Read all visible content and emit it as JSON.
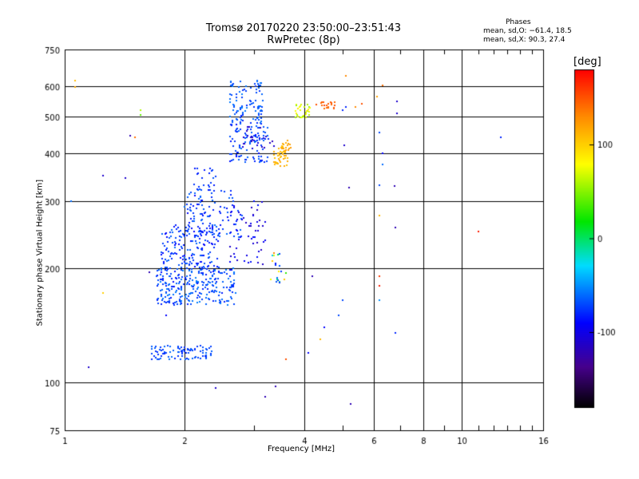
{
  "header": {
    "title_line1": "Tromsø 20170220 23:50:00–23:51:43",
    "title_line2": "RwPretec (8p)"
  },
  "phases": {
    "heading": "Phases",
    "line_o": "mean, sd,O: −61.4, 18.5",
    "line_x": "mean, sd,X:  90.3, 27.4"
  },
  "chart_data": {
    "type": "scatter",
    "xlabel": "Frequency [MHz]",
    "ylabel": "Stationary phase Virtual Height [km]",
    "xscale": "log",
    "yscale": "log",
    "xlim": [
      1,
      16
    ],
    "ylim": [
      75,
      750
    ],
    "x_ticks": [
      1,
      2,
      4,
      6,
      8,
      10,
      16
    ],
    "x_minor": [
      3,
      5,
      7,
      9,
      11,
      12,
      13,
      14,
      15
    ],
    "y_ticks": [
      75,
      100,
      200,
      300,
      400,
      500,
      600,
      750
    ],
    "grid": true,
    "colorbar": {
      "label": "[deg]",
      "range": [
        -180,
        180
      ],
      "ticks": [
        -100,
        0,
        100
      ],
      "colormap": "rainbow"
    },
    "points": [
      [
        1.06,
        620,
        108
      ],
      [
        1.06,
        598,
        115
      ],
      [
        1.04,
        300,
        -60
      ],
      [
        1.25,
        350,
        -110
      ],
      [
        1.42,
        345,
        -110
      ],
      [
        1.46,
        445,
        -120
      ],
      [
        1.5,
        440,
        140
      ],
      [
        1.55,
        520,
        60
      ],
      [
        1.55,
        505,
        40
      ],
      [
        1.15,
        110,
        -110
      ],
      [
        1.25,
        172,
        100
      ],
      [
        1.63,
        195,
        -120
      ],
      [
        1.8,
        172,
        -60
      ],
      [
        1.8,
        150,
        -90
      ],
      [
        2.4,
        97,
        -110
      ],
      [
        3.2,
        92,
        -120
      ],
      [
        3.4,
        98,
        -120
      ],
      [
        5.25,
        88,
        -120
      ],
      [
        5.2,
        325,
        -120
      ],
      [
        6.2,
        330,
        -70
      ],
      [
        6.2,
        275,
        110
      ],
      [
        6.75,
        328,
        -120
      ],
      [
        6.8,
        255,
        -120
      ],
      [
        6.8,
        135,
        -80
      ],
      [
        6.2,
        190,
        160
      ],
      [
        6.2,
        180,
        170
      ],
      [
        6.2,
        165,
        -50
      ],
      [
        6.2,
        455,
        -70
      ],
      [
        6.3,
        605,
        140
      ],
      [
        6.85,
        548,
        -110
      ],
      [
        6.85,
        510,
        -110
      ],
      [
        6.1,
        565,
        120
      ],
      [
        6.3,
        400,
        -90
      ],
      [
        6.3,
        375,
        -60
      ],
      [
        11,
        250,
        170
      ],
      [
        12.5,
        440,
        -80
      ],
      [
        4.5,
        140,
        -90
      ],
      [
        4.9,
        150,
        -70
      ],
      [
        5.0,
        165,
        -70
      ],
      [
        4.1,
        120,
        -90
      ],
      [
        4.2,
        190,
        -120
      ],
      [
        3.6,
        115,
        150
      ],
      [
        4.4,
        130,
        110
      ],
      [
        5.6,
        540,
        150
      ],
      [
        5.4,
        530,
        130
      ],
      [
        5.1,
        530,
        -80
      ],
      [
        5.0,
        520,
        -80
      ],
      [
        5.1,
        640,
        130
      ],
      [
        5.05,
        420,
        -110
      ]
    ],
    "clusters": [
      {
        "f": [
          1.65,
          2.35
        ],
        "h": [
          115,
          125
        ],
        "n": 90,
        "ph": [
          -80,
          -60
        ]
      },
      {
        "f": [
          1.7,
          2.7
        ],
        "h": [
          160,
          200
        ],
        "n": 260,
        "ph": [
          -85,
          -55
        ]
      },
      {
        "f": [
          1.75,
          2.45
        ],
        "h": [
          200,
          260
        ],
        "n": 160,
        "ph": [
          -90,
          -60
        ]
      },
      {
        "f": [
          2.0,
          2.8
        ],
        "h": [
          240,
          320
        ],
        "n": 120,
        "ph": [
          -90,
          -60
        ]
      },
      {
        "f": [
          2.1,
          2.4
        ],
        "h": [
          320,
          370
        ],
        "n": 25,
        "ph": [
          -85,
          -65
        ]
      },
      {
        "f": [
          2.6,
          3.2
        ],
        "h": [
          200,
          300
        ],
        "n": 50,
        "ph": [
          -115,
          -85
        ]
      },
      {
        "f": [
          2.6,
          3.25
        ],
        "h": [
          380,
          480
        ],
        "n": 100,
        "ph": [
          -90,
          -60
        ]
      },
      {
        "f": [
          2.6,
          3.15
        ],
        "h": [
          480,
          620
        ],
        "n": 100,
        "ph": [
          -80,
          -55
        ]
      },
      {
        "f": [
          3.35,
          3.65
        ],
        "h": [
          370,
          420
        ],
        "n": 40,
        "ph": [
          105,
          120
        ]
      },
      {
        "f": [
          3.5,
          3.7
        ],
        "h": [
          400,
          440
        ],
        "n": 15,
        "ph": [
          110,
          125
        ]
      },
      {
        "f": [
          3.8,
          4.2
        ],
        "h": [
          495,
          540
        ],
        "n": 30,
        "ph": [
          50,
          90
        ]
      },
      {
        "f": [
          4.3,
          4.8
        ],
        "h": [
          525,
          550
        ],
        "n": 20,
        "ph": [
          140,
          155
        ]
      },
      {
        "f": [
          3.3,
          3.6
        ],
        "h": [
          180,
          220
        ],
        "n": 20,
        "ph": [
          -90,
          130
        ]
      },
      {
        "f": [
          2.8,
          3.4
        ],
        "h": [
          410,
          470
        ],
        "n": 25,
        "ph": [
          -120,
          -100
        ]
      }
    ]
  }
}
